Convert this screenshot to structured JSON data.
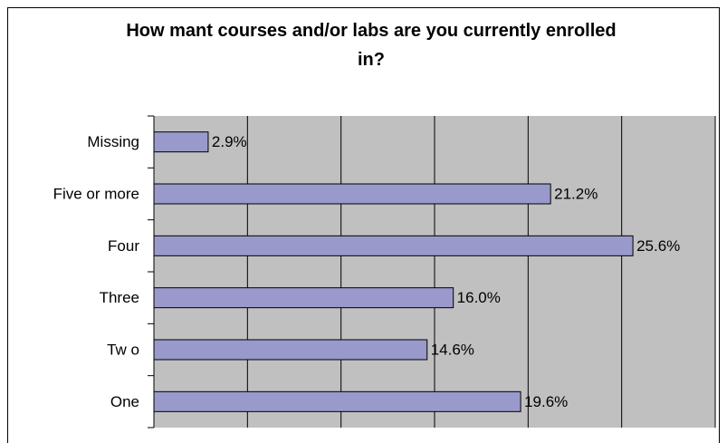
{
  "chart_data": {
    "type": "barh",
    "title": "How mant courses and/or labs are you currently enrolled in?",
    "categories": [
      "Missing",
      "Five or more",
      "Four",
      "Three",
      "Tw o",
      "One"
    ],
    "values": [
      2.9,
      21.2,
      25.6,
      16.0,
      14.6,
      19.6
    ],
    "value_labels": [
      "2.9%",
      "21.2%",
      "25.6%",
      "16.0%",
      "14.6%",
      "19.6%"
    ],
    "color": "#9999cc",
    "xlim": [
      0,
      30
    ],
    "xticks": [
      0,
      5,
      10,
      15,
      20,
      25,
      30
    ],
    "grid": true
  }
}
